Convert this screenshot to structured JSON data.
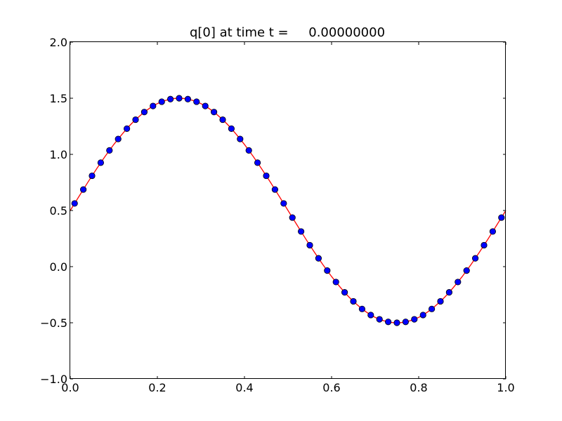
{
  "chart_data": {
    "type": "line",
    "title": "q[0] at time t =     0.00000000",
    "xlabel": "",
    "ylabel": "",
    "xlim": [
      0.0,
      1.0
    ],
    "ylim": [
      -1.0,
      2.0
    ],
    "grid": false,
    "x_ticks": [
      0.0,
      0.2,
      0.4,
      0.6,
      0.8,
      1.0
    ],
    "x_tick_labels": [
      "0.0",
      "0.2",
      "0.4",
      "0.6",
      "0.8",
      "1.0"
    ],
    "y_ticks": [
      -1.0,
      -0.5,
      0.0,
      0.5,
      1.0,
      1.5,
      2.0
    ],
    "y_tick_labels": [
      "−1.0",
      "−0.5",
      "0.0",
      "0.5",
      "1.0",
      "1.5",
      "2.0"
    ],
    "series": [
      {
        "kind": "line",
        "color": "#ff0000",
        "x": [
          0.0,
          0.01,
          0.02,
          0.03,
          0.04,
          0.05,
          0.06,
          0.07,
          0.08,
          0.09,
          0.1,
          0.11,
          0.12,
          0.13,
          0.14,
          0.15,
          0.16,
          0.17,
          0.18,
          0.19,
          0.2,
          0.21,
          0.22,
          0.23,
          0.24,
          0.25,
          0.26,
          0.27,
          0.28,
          0.29,
          0.3,
          0.31,
          0.32,
          0.33,
          0.34,
          0.35,
          0.36,
          0.37,
          0.38,
          0.39,
          0.4,
          0.41,
          0.42,
          0.43,
          0.44,
          0.45,
          0.46,
          0.47,
          0.48,
          0.49,
          0.5,
          0.51,
          0.52,
          0.53,
          0.54,
          0.55,
          0.56,
          0.57,
          0.58,
          0.59,
          0.6,
          0.61,
          0.62,
          0.63,
          0.64,
          0.65,
          0.66,
          0.67,
          0.68,
          0.69,
          0.7,
          0.71,
          0.72,
          0.73,
          0.74,
          0.75,
          0.76,
          0.77,
          0.78,
          0.79,
          0.8,
          0.81,
          0.82,
          0.83,
          0.84,
          0.85,
          0.86,
          0.87,
          0.88,
          0.89,
          0.9,
          0.91,
          0.92,
          0.93,
          0.94,
          0.95,
          0.96,
          0.97,
          0.98,
          0.99,
          1.0
        ],
        "y": [
          0.5,
          0.563,
          0.625,
          0.687,
          0.749,
          0.809,
          0.868,
          0.926,
          0.982,
          1.035,
          1.088,
          1.137,
          1.184,
          1.229,
          1.271,
          1.309,
          1.344,
          1.377,
          1.405,
          1.431,
          1.452,
          1.469,
          1.482,
          1.492,
          1.498,
          1.5,
          1.498,
          1.492,
          1.482,
          1.469,
          1.452,
          1.431,
          1.405,
          1.377,
          1.344,
          1.309,
          1.271,
          1.229,
          1.184,
          1.137,
          1.088,
          1.035,
          0.982,
          0.926,
          0.868,
          0.809,
          0.749,
          0.687,
          0.625,
          0.563,
          0.5,
          0.437,
          0.375,
          0.313,
          0.251,
          0.191,
          0.132,
          0.074,
          0.018,
          -0.035,
          -0.088,
          -0.137,
          -0.184,
          -0.229,
          -0.271,
          -0.309,
          -0.344,
          -0.377,
          -0.405,
          -0.431,
          -0.452,
          -0.469,
          -0.482,
          -0.492,
          -0.498,
          -0.5,
          -0.498,
          -0.492,
          -0.482,
          -0.469,
          -0.452,
          -0.431,
          -0.405,
          -0.377,
          -0.344,
          -0.309,
          -0.271,
          -0.229,
          -0.184,
          -0.137,
          -0.088,
          -0.035,
          0.018,
          0.074,
          0.132,
          0.191,
          0.251,
          0.313,
          0.375,
          0.437,
          0.5
        ]
      },
      {
        "kind": "markers",
        "color": "#0000ff",
        "edge_color": "#000000",
        "x": [
          0.01,
          0.03,
          0.05,
          0.07,
          0.09,
          0.11,
          0.13,
          0.15,
          0.17,
          0.19,
          0.21,
          0.23,
          0.25,
          0.27,
          0.29,
          0.31,
          0.33,
          0.35,
          0.37,
          0.39,
          0.41,
          0.43,
          0.45,
          0.47,
          0.49,
          0.51,
          0.53,
          0.55,
          0.57,
          0.59,
          0.61,
          0.63,
          0.65,
          0.67,
          0.69,
          0.71,
          0.73,
          0.75,
          0.77,
          0.79,
          0.81,
          0.83,
          0.85,
          0.87,
          0.89,
          0.91,
          0.93,
          0.95,
          0.97,
          0.99
        ],
        "y": [
          0.563,
          0.687,
          0.809,
          0.926,
          1.035,
          1.137,
          1.229,
          1.309,
          1.377,
          1.431,
          1.469,
          1.492,
          1.5,
          1.492,
          1.469,
          1.431,
          1.377,
          1.309,
          1.229,
          1.137,
          1.035,
          0.926,
          0.809,
          0.687,
          0.563,
          0.437,
          0.313,
          0.191,
          0.074,
          -0.035,
          -0.137,
          -0.229,
          -0.309,
          -0.377,
          -0.431,
          -0.469,
          -0.492,
          -0.5,
          -0.492,
          -0.469,
          -0.431,
          -0.377,
          -0.309,
          -0.229,
          -0.137,
          -0.035,
          0.074,
          0.191,
          0.313,
          0.437
        ]
      }
    ]
  }
}
